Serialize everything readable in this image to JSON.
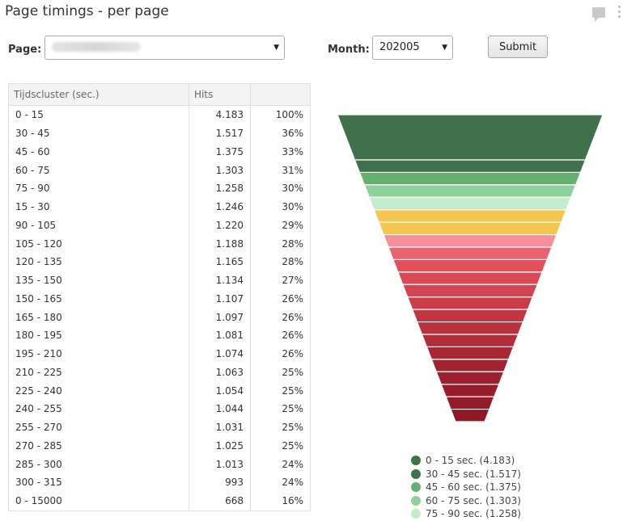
{
  "header": {
    "title": "Page timings - per page"
  },
  "form": {
    "page_label": "Page:",
    "month_label": "Month:",
    "month_value": "202005",
    "submit_label": "Submit"
  },
  "table": {
    "headers": [
      "Tijdscluster (sec.)",
      "Hits",
      ""
    ],
    "rows": [
      {
        "cluster": "0 - 15",
        "hits": "4.183",
        "pct": "100%"
      },
      {
        "cluster": "30 - 45",
        "hits": "1.517",
        "pct": "36%"
      },
      {
        "cluster": "45 - 60",
        "hits": "1.375",
        "pct": "33%"
      },
      {
        "cluster": "60 - 75",
        "hits": "1.303",
        "pct": "31%"
      },
      {
        "cluster": "75 - 90",
        "hits": "1.258",
        "pct": "30%"
      },
      {
        "cluster": "15 - 30",
        "hits": "1.246",
        "pct": "30%"
      },
      {
        "cluster": "90 - 105",
        "hits": "1.220",
        "pct": "29%"
      },
      {
        "cluster": "105 - 120",
        "hits": "1.188",
        "pct": "28%"
      },
      {
        "cluster": "120 - 135",
        "hits": "1.165",
        "pct": "28%"
      },
      {
        "cluster": "135 - 150",
        "hits": "1.134",
        "pct": "27%"
      },
      {
        "cluster": "150 - 165",
        "hits": "1.107",
        "pct": "26%"
      },
      {
        "cluster": "165 - 180",
        "hits": "1.097",
        "pct": "26%"
      },
      {
        "cluster": "180 - 195",
        "hits": "1.081",
        "pct": "26%"
      },
      {
        "cluster": "195 - 210",
        "hits": "1.074",
        "pct": "26%"
      },
      {
        "cluster": "210 - 225",
        "hits": "1.063",
        "pct": "25%"
      },
      {
        "cluster": "225 - 240",
        "hits": "1.054",
        "pct": "25%"
      },
      {
        "cluster": "240 - 255",
        "hits": "1.044",
        "pct": "25%"
      },
      {
        "cluster": "255 - 270",
        "hits": "1.031",
        "pct": "25%"
      },
      {
        "cluster": "270 - 285",
        "hits": "1.025",
        "pct": "25%"
      },
      {
        "cluster": "285 - 300",
        "hits": "1.013",
        "pct": "24%"
      },
      {
        "cluster": "300 - 315",
        "hits": "993",
        "pct": "24%"
      },
      {
        "cluster": "0 - 15000",
        "hits": "668",
        "pct": "16%"
      }
    ]
  },
  "funnel": {
    "colors": [
      "#41704c",
      "#41704c",
      "#66b06f",
      "#8fd19a",
      "#c4edcb",
      "#f5c64f",
      "#f5c64f",
      "#f68f9b",
      "#e96470",
      "#e04f5a",
      "#d94a55",
      "#d24450",
      "#c93c48",
      "#c03642",
      "#b8313d",
      "#b02c38",
      "#a82734",
      "#a12330",
      "#9c202d",
      "#971d2a",
      "#931b27",
      "#8f1925"
    ],
    "values": [
      4183,
      1517,
      1375,
      1303,
      1258,
      1246,
      1220,
      1188,
      1165,
      1134,
      1107,
      1097,
      1081,
      1074,
      1063,
      1054,
      1044,
      1031,
      1025,
      1013,
      993,
      668
    ]
  },
  "legend": {
    "items": [
      {
        "label": "0 - 15 sec. (4.183)",
        "color": "#41704c"
      },
      {
        "label": "30 - 45 sec. (1.517)",
        "color": "#41704c"
      },
      {
        "label": "45 - 60 sec. (1.375)",
        "color": "#66b06f"
      },
      {
        "label": "60 - 75 sec. (1.303)",
        "color": "#8fd19a"
      },
      {
        "label": "75 - 90 sec. (1.258)",
        "color": "#c4edcb"
      }
    ]
  }
}
